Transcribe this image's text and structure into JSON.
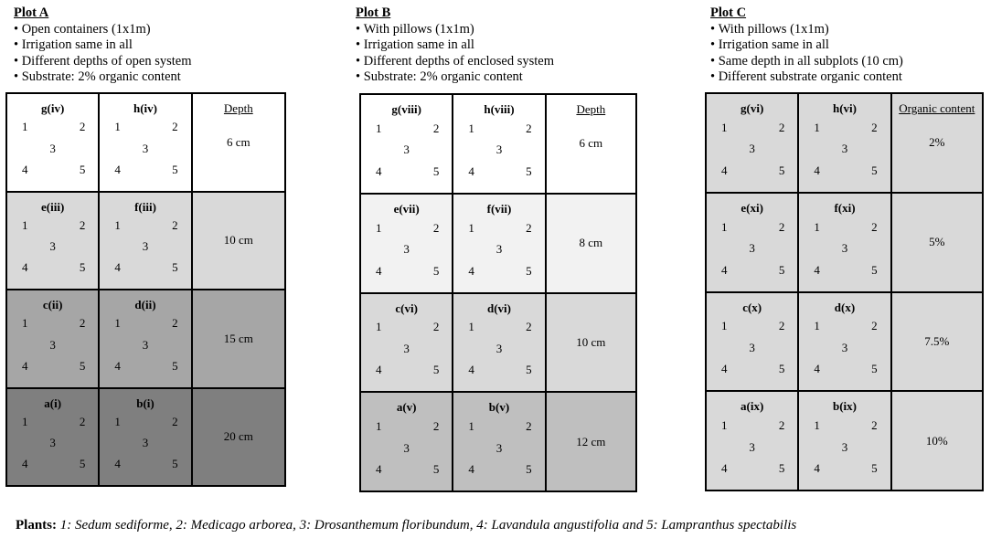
{
  "plots": [
    {
      "title": "Plot A",
      "bullets": [
        "Open containers (1x1m)",
        "Irrigation same in all",
        "Different depths of open system",
        "Substrate: 2% organic content"
      ],
      "column_header": "Depth",
      "rows": [
        {
          "left": "g(iv)",
          "right": "h(iv)",
          "value": "6 cm",
          "color": "#ffffff"
        },
        {
          "left": "e(iii)",
          "right": "f(iii)",
          "value": "10 cm",
          "color": "#d9d9d9"
        },
        {
          "left": "c(ii)",
          "right": "d(ii)",
          "value": "15 cm",
          "color": "#a6a6a6"
        },
        {
          "left": "a(i)",
          "right": "b(i)",
          "value": "20 cm",
          "color": "#7f7f7f"
        }
      ]
    },
    {
      "title": "Plot B",
      "bullets": [
        "With pillows (1x1m)",
        "Irrigation same in all",
        "Different depths of enclosed system",
        "Substrate: 2% organic content"
      ],
      "column_header": "Depth",
      "rows": [
        {
          "left": "g(viii)",
          "right": "h(viii)",
          "value": "6 cm",
          "color": "#ffffff"
        },
        {
          "left": "e(vii)",
          "right": "f(vii)",
          "value": "8 cm",
          "color": "#f2f2f2"
        },
        {
          "left": "c(vi)",
          "right": "d(vi)",
          "value": "10 cm",
          "color": "#d9d9d9"
        },
        {
          "left": "a(v)",
          "right": "b(v)",
          "value": "12 cm",
          "color": "#bfbfbf"
        }
      ]
    },
    {
      "title": "Plot C",
      "bullets": [
        "With pillows (1x1m)",
        "Irrigation same in all",
        "Same depth in all subplots (10 cm)",
        "Different substrate organic content"
      ],
      "column_header": "Organic content",
      "rows": [
        {
          "left": "g(vi)",
          "right": "h(vi)",
          "value": "2%",
          "color": "#d9d9d9"
        },
        {
          "left": "e(xi)",
          "right": "f(xi)",
          "value": "5%",
          "color": "#d9d9d9"
        },
        {
          "left": "c(x)",
          "right": "d(x)",
          "value": "7.5%",
          "color": "#d9d9d9"
        },
        {
          "left": "a(ix)",
          "right": "b(ix)",
          "value": "10%",
          "color": "#d9d9d9"
        }
      ]
    }
  ],
  "numbers": [
    "1",
    "2",
    "3",
    "4",
    "5"
  ],
  "footer": {
    "label": "Plants:",
    "text": "1: Sedum sediforme, 2: Medicago arborea, 3: Drosanthemum floribundum, 4: Lavandula angustifolia and 5: Lampranthus spectabilis"
  }
}
